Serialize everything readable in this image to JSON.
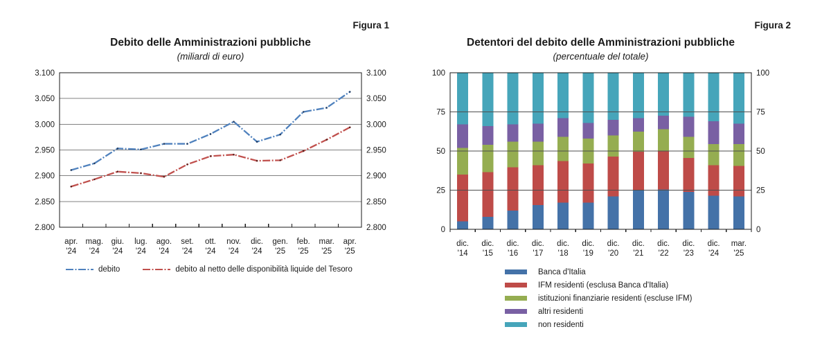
{
  "page": {
    "background": "#ffffff"
  },
  "chart_data": [
    {
      "type": "line",
      "figure_label": "Figura 1",
      "title": "Debito delle Amministrazioni pubbliche",
      "subtitle": "(miliardi di euro)",
      "grid": "horizontal",
      "legend_position": "bottom",
      "ylim": [
        2800,
        3100
      ],
      "ytick_step": 50,
      "ytick_labels": [
        "2.800",
        "2.850",
        "2.900",
        "2.950",
        "3.000",
        "3.050",
        "3.100"
      ],
      "y_labels_both_sides": true,
      "x_labels": [
        [
          "apr.",
          "'24"
        ],
        [
          "mag.",
          "'24"
        ],
        [
          "giu.",
          "'24"
        ],
        [
          "lug.",
          "'24"
        ],
        [
          "ago.",
          "'24"
        ],
        [
          "set.",
          "'24"
        ],
        [
          "ott.",
          "'24"
        ],
        [
          "nov.",
          "'24"
        ],
        [
          "dic.",
          "'24"
        ],
        [
          "gen.",
          "'25"
        ],
        [
          "feb.",
          "'25"
        ],
        [
          "mar.",
          "'25"
        ],
        [
          "apr.",
          "'25"
        ]
      ],
      "series": [
        {
          "name": "debito",
          "color": "#4f81bd",
          "marker_color": "#1f3b63",
          "line_style": "dash-dot",
          "values": [
            2911,
            2924,
            2953,
            2951,
            2962,
            2962,
            2981,
            3005,
            2966,
            2980,
            3024,
            3032,
            3063
          ]
        },
        {
          "name": "debito al netto delle disponibilità liquide del Tesoro",
          "color": "#c0504d",
          "marker_color": "#5f211e",
          "line_style": "dash-dot",
          "values": [
            2879,
            2893,
            2908,
            2905,
            2898,
            2922,
            2938,
            2941,
            2929,
            2930,
            2948,
            2970,
            2994
          ]
        }
      ]
    },
    {
      "type": "bar",
      "stacked": true,
      "figure_label": "Figura 2",
      "title": "Detentori del debito delle Amministrazioni pubbliche",
      "subtitle": "(percentuale del totale)",
      "grid": "horizontal",
      "legend_position": "bottom",
      "ylim": [
        0,
        100
      ],
      "ytick_step": 25,
      "ytick_labels": [
        "0",
        "25",
        "50",
        "75",
        "100"
      ],
      "y_labels_both_sides": true,
      "x_labels": [
        [
          "dic.",
          "'14"
        ],
        [
          "dic.",
          "'15"
        ],
        [
          "dic.",
          "'16"
        ],
        [
          "dic.",
          "'17"
        ],
        [
          "dic.",
          "'18"
        ],
        [
          "dic.",
          "'19"
        ],
        [
          "dic.",
          "'20"
        ],
        [
          "dic.",
          "'21"
        ],
        [
          "dic.",
          "'22"
        ],
        [
          "dic.",
          "'23"
        ],
        [
          "dic.",
          "'24"
        ],
        [
          "mar.",
          "'25"
        ]
      ],
      "series": [
        {
          "name": "Banca d'Italia",
          "color": "#4472a8",
          "values": [
            5,
            8,
            12,
            15.5,
            17,
            17,
            21,
            25,
            25.5,
            24,
            21.5,
            21
          ]
        },
        {
          "name": "IFM residenti (esclusa Banca d'Italia)",
          "color": "#be4b48",
          "values": [
            30,
            28.5,
            27.5,
            25.5,
            26.5,
            25,
            25.5,
            24.5,
            24.5,
            21.5,
            19.5,
            19.5
          ]
        },
        {
          "name": "istituzioni finanziarie residenti (escluse IFM)",
          "color": "#95ad51",
          "values": [
            17,
            17.5,
            16.5,
            15,
            15.5,
            16,
            13.5,
            13,
            14,
            13.5,
            13.5,
            14
          ]
        },
        {
          "name": "altri residenti",
          "color": "#7960a3",
          "values": [
            15,
            12,
            11,
            11.5,
            12,
            10,
            10,
            8.5,
            8.5,
            13,
            14.5,
            13
          ]
        },
        {
          "name": "non residenti",
          "color": "#46a5ba",
          "values": [
            33,
            34,
            33,
            32.5,
            29,
            32,
            30,
            29,
            27.5,
            28,
            31,
            32.5
          ]
        }
      ]
    }
  ]
}
